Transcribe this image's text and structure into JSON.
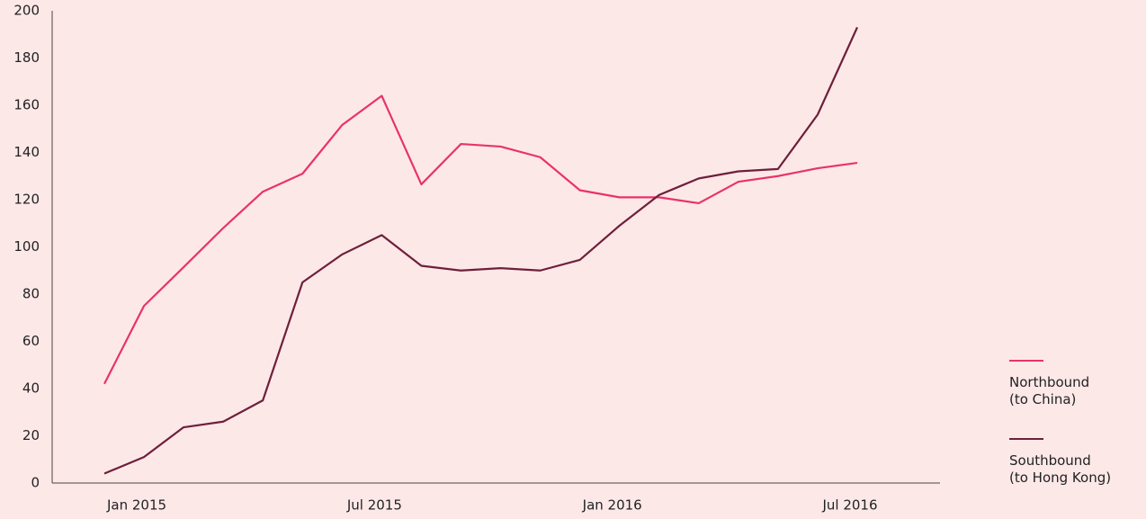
{
  "chart_data": {
    "type": "line",
    "categories": [
      null,
      "Jan 2015",
      null,
      null,
      null,
      null,
      null,
      "Jul 2015",
      null,
      null,
      null,
      null,
      null,
      "Jan 2016",
      null,
      null,
      null,
      null,
      null,
      "Jul 2016"
    ],
    "series": [
      {
        "name": "Northbound\n(to China)",
        "color": "#e8336b",
        "values": [
          42,
          75,
          91.4,
          108,
          123.4,
          131,
          151.6,
          164,
          126.5,
          143.6,
          142.5,
          138,
          124,
          121,
          121,
          118.5,
          127.6,
          130,
          133.3,
          135.6
        ]
      },
      {
        "name": "Southbound\n(to Hong Kong)",
        "color": "#6e1f3b",
        "values": [
          4,
          11,
          23.6,
          26,
          35,
          85,
          96.8,
          105,
          92,
          90,
          91,
          90,
          94.5,
          109,
          122,
          129,
          132,
          133,
          156,
          193
        ]
      }
    ],
    "ylim": [
      0,
      200
    ],
    "yticks": [
      0,
      20,
      40,
      60,
      80,
      100,
      120,
      140,
      160,
      180,
      200
    ],
    "grid": false,
    "legend": "right"
  }
}
